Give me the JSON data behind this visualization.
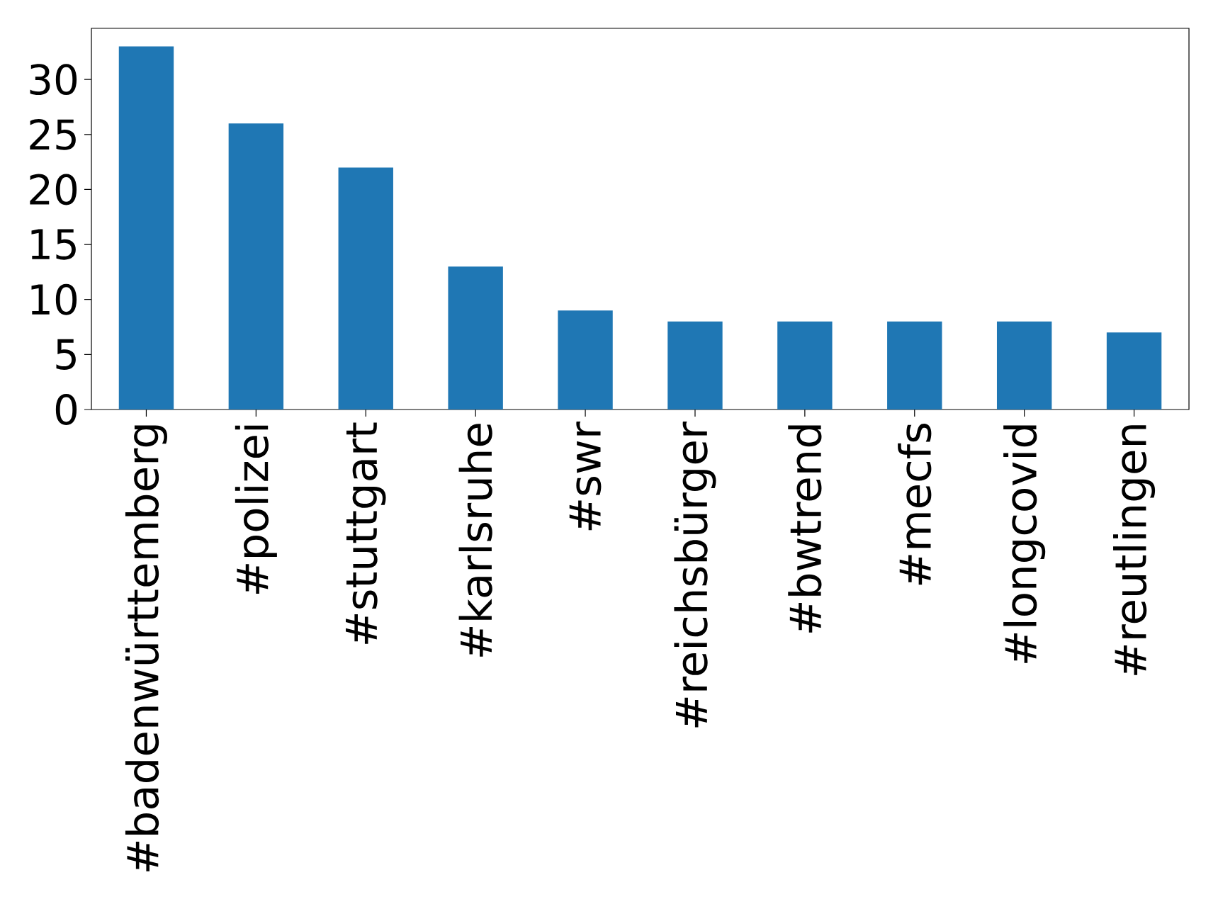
{
  "chart_data": {
    "type": "bar",
    "categories": [
      "#badenwürttemberg",
      "#polizei",
      "#stuttgart",
      "#karlsruhe",
      "#swr",
      "#reichsbürger",
      "#bwtrend",
      "#mecfs",
      "#longcovid",
      "#reutlingen"
    ],
    "values": [
      33,
      26,
      22,
      13,
      9,
      8,
      8,
      8,
      8,
      7
    ],
    "color": "#1f77b4",
    "ylim": [
      0,
      34.65
    ],
    "yticks": [
      0,
      5,
      10,
      15,
      20,
      25,
      30
    ],
    "grid": false
  }
}
